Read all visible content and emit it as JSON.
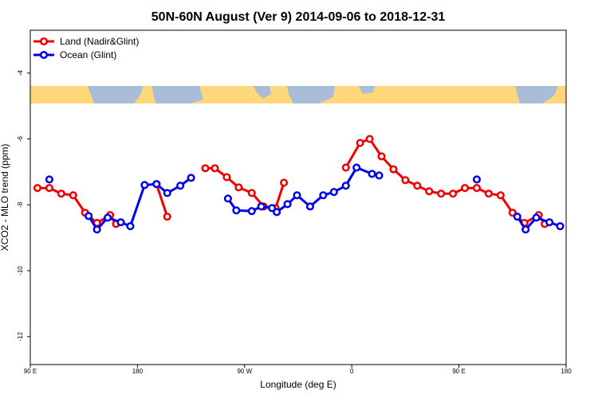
{
  "chart_data": {
    "type": "line",
    "title": "50N-60N August (Ver 9)   2014-09-06 to 2018-12-31",
    "x_label": "Longitude (deg E)",
    "y_label": "XCO2 - MLO trend (ppm)",
    "xlim": [
      90,
      540
    ],
    "xticks": [
      {
        "value": 90,
        "label": "90 E"
      },
      {
        "value": 180,
        "label": "180"
      },
      {
        "value": 270,
        "label": "90 W"
      },
      {
        "value": 360,
        "label": "0"
      },
      {
        "value": 450,
        "label": "90 E"
      },
      {
        "value": 540,
        "label": "180"
      }
    ],
    "ylim": [
      -12.85,
      -2.7
    ],
    "yticks": [
      -12,
      -10,
      -8,
      -6,
      -4
    ],
    "legend": "top-left",
    "series": [
      {
        "name": "Land (Nadir&Glint)",
        "color": "#ee0000",
        "x": [
          96,
          106,
          116,
          126,
          136,
          146,
          157,
          162,
          null,
          196,
          205,
          null,
          237,
          245,
          255,
          265,
          276,
          286,
          296,
          303,
          null,
          355,
          367,
          375,
          385,
          395,
          405,
          415,
          425,
          435,
          445,
          455,
          465,
          475,
          485,
          495,
          505,
          517,
          522
        ],
        "values": [
          -7.49,
          -7.49,
          -7.66,
          -7.71,
          -8.24,
          -8.55,
          -8.31,
          -8.58,
          null,
          -7.37,
          -8.36,
          null,
          -6.89,
          -6.89,
          -7.16,
          -7.47,
          -7.64,
          -8.05,
          -8.1,
          -7.33,
          null,
          -6.87,
          -6.12,
          -6.0,
          -6.53,
          -6.92,
          -7.25,
          -7.42,
          -7.59,
          -7.66,
          -7.66,
          -7.49,
          -7.49,
          -7.66,
          -7.71,
          -8.24,
          -8.55,
          -8.31,
          -8.58
        ]
      },
      {
        "name": "Ocean (Glint)",
        "color": "#0000ee",
        "x": [
          106,
          null,
          139,
          146,
          155,
          166,
          174,
          186,
          196,
          205,
          216,
          225,
          null,
          256,
          263,
          276,
          284,
          293,
          297,
          306,
          314,
          325,
          336,
          345,
          355,
          364,
          377,
          383,
          null,
          465,
          null,
          499,
          506,
          515,
          526,
          535
        ],
        "values": [
          -7.23,
          null,
          -8.34,
          -8.75,
          -8.39,
          -8.53,
          -8.65,
          -7.4,
          -7.37,
          -7.64,
          -7.42,
          -7.18,
          null,
          -7.81,
          -8.17,
          -8.19,
          -8.05,
          -8.1,
          -8.22,
          -7.98,
          -7.71,
          -8.05,
          -7.71,
          -7.61,
          -7.42,
          -6.87,
          -7.06,
          -7.11,
          null,
          -7.23,
          null,
          -8.36,
          -8.75,
          -8.39,
          -8.53,
          -8.65
        ]
      }
    ]
  }
}
